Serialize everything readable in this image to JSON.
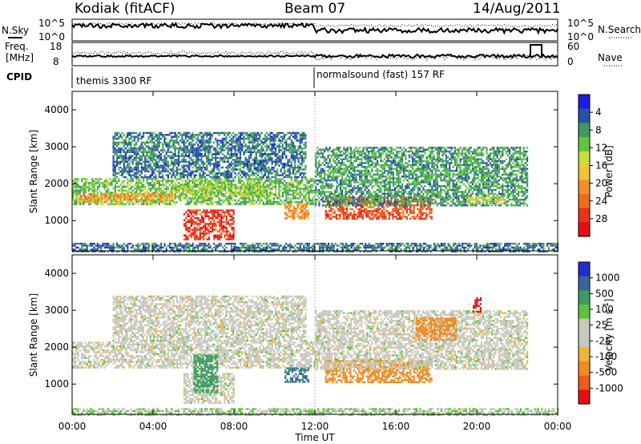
{
  "header": {
    "station": "Kodiak (fitACF)",
    "beam": "Beam 07",
    "date": "14/Aug/2011"
  },
  "noise_panel": {
    "left_label": "N.Sky",
    "right_label": "N.Search",
    "ticks_left": [
      "10^5",
      "10^0"
    ],
    "ticks_right": [
      "10^5",
      "10^0"
    ]
  },
  "freq_panel": {
    "left_label_1": "Freq.",
    "left_label_2": "[MHz]",
    "right_label": "Nave",
    "ticks_left": [
      "18",
      "8"
    ],
    "ticks_right": [
      "60",
      "0"
    ]
  },
  "cpid_panel": {
    "label": "CPID",
    "segments": [
      {
        "name": "themis 3300 RF",
        "start_hour": 0,
        "end_hour": 12
      },
      {
        "name": "normalsound (fast) 157 RF",
        "start_hour": 12,
        "end_hour": 24
      }
    ]
  },
  "range_axis": {
    "label": "Slant Range [km]",
    "ticks": [
      "1000",
      "2000",
      "3000",
      "4000"
    ]
  },
  "time_axis": {
    "label": "Time UT",
    "ticks": [
      "00:00",
      "04:00",
      "08:00",
      "12:00",
      "16:00",
      "20:00",
      "00:00"
    ]
  },
  "power_bar": {
    "label": "Power [dB]",
    "ticks": [
      "4",
      "8",
      "12",
      "16",
      "20",
      "24",
      "28"
    ],
    "colors": [
      "#1d1ce6",
      "#2a51a8",
      "#3c9a62",
      "#62c53c",
      "#c8dc3c",
      "#f3c13a",
      "#f39025",
      "#f06a1f",
      "#e8331a",
      "#e41010"
    ]
  },
  "velocity_bar": {
    "label": "Velocity [m s",
    "label_sup": "-1",
    "label_end": "]",
    "ticks": [
      "1000",
      "500",
      "100",
      "25",
      "-25",
      "-100",
      "-500",
      "-1000"
    ],
    "colors": [
      "#2030c8",
      "#3a64a0",
      "#3c9c62",
      "#5cc43c",
      "#c8c8c0",
      "#c8c8c0",
      "#f0b436",
      "#f08a22",
      "#f05a1c",
      "#e41010"
    ]
  },
  "chart_data": {
    "type": "heatmap",
    "title": "Kodiak (fitACF) Beam 07 14/Aug/2011",
    "xlabel": "Time UT",
    "ylabel": "Slant Range [km]",
    "x_range_hours": [
      0,
      24
    ],
    "y_range_km": [
      180,
      4500
    ],
    "panels": [
      {
        "name": "Power",
        "colorbar_label": "Power [dB]",
        "colorbar_range": [
          0,
          30
        ],
        "regions": [
          {
            "t0": 0.0,
            "t1": 12.0,
            "r0": 1450,
            "r1": 2150,
            "value": 10
          },
          {
            "t0": 0.2,
            "t1": 5.0,
            "r0": 1500,
            "r1": 1750,
            "value": 18
          },
          {
            "t0": 5.0,
            "t1": 9.5,
            "r0": 1650,
            "r1": 2000,
            "value": 12
          },
          {
            "t0": 2.0,
            "t1": 11.5,
            "r0": 2150,
            "r1": 3400,
            "value": 6
          },
          {
            "t0": 5.5,
            "t1": 8.0,
            "r0": 500,
            "r1": 1300,
            "value": 26
          },
          {
            "t0": 9.0,
            "t1": 9.6,
            "r0": 2300,
            "r1": 2700,
            "value": 5
          },
          {
            "t0": 10.5,
            "t1": 11.7,
            "r0": 1050,
            "r1": 1450,
            "value": 20
          },
          {
            "t0": 12.5,
            "t1": 17.8,
            "r0": 1050,
            "r1": 1650,
            "value": 24
          },
          {
            "t0": 12.0,
            "t1": 22.5,
            "r0": 1400,
            "r1": 3000,
            "value": 8
          },
          {
            "t0": 19.5,
            "t1": 21.5,
            "r0": 1450,
            "r1": 1650,
            "value": 14
          },
          {
            "t0": 0.0,
            "t1": 24.0,
            "r0": 180,
            "r1": 400,
            "value": 6
          }
        ]
      },
      {
        "name": "Velocity",
        "colorbar_label": "Velocity [m s-1]",
        "colorbar_range": [
          -1000,
          1000
        ],
        "regions": [
          {
            "t0": 0.0,
            "t1": 12.0,
            "r0": 1450,
            "r1": 2150,
            "value": 0
          },
          {
            "t0": 2.0,
            "t1": 11.5,
            "r0": 2150,
            "r1": 3400,
            "value": 0
          },
          {
            "t0": 5.5,
            "t1": 8.0,
            "r0": 500,
            "r1": 1300,
            "value": 0
          },
          {
            "t0": 6.0,
            "t1": 7.2,
            "r0": 800,
            "r1": 1800,
            "value": 150
          },
          {
            "t0": 10.5,
            "t1": 11.7,
            "r0": 1050,
            "r1": 1450,
            "value": 300
          },
          {
            "t0": 12.5,
            "t1": 17.8,
            "r0": 1050,
            "r1": 1650,
            "value": -300
          },
          {
            "t0": 12.0,
            "t1": 22.5,
            "r0": 1400,
            "r1": 3000,
            "value": 0
          },
          {
            "t0": 19.8,
            "t1": 20.2,
            "r0": 2950,
            "r1": 3350,
            "value": -900
          },
          {
            "t0": 17.0,
            "t1": 19.0,
            "r0": 2200,
            "r1": 2800,
            "value": -400
          },
          {
            "t0": 0.0,
            "t1": 24.0,
            "r0": 180,
            "r1": 350,
            "value": 20
          }
        ]
      }
    ]
  }
}
